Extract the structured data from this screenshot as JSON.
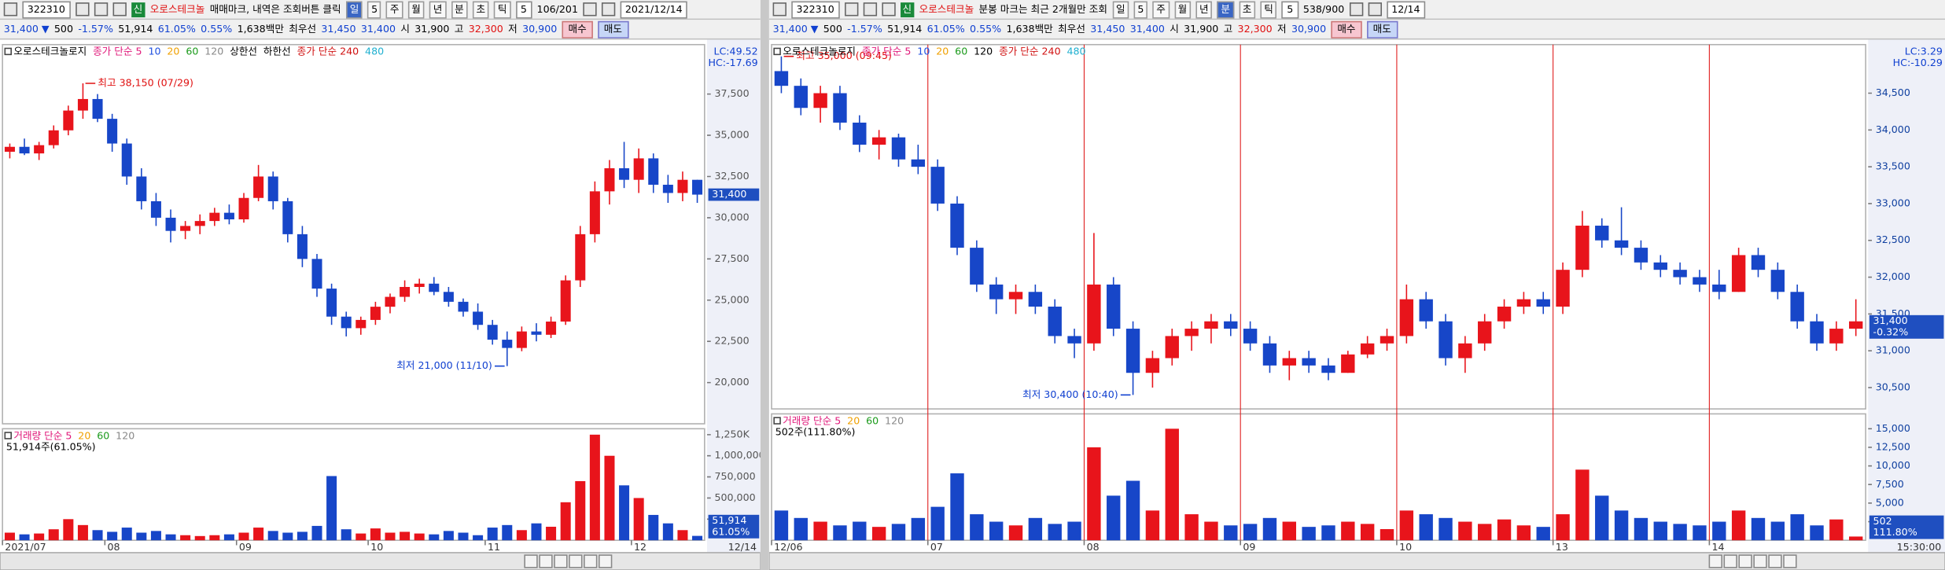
{
  "panels": [
    {
      "toolbar": {
        "code": "322310",
        "badge": "신",
        "name": "오로스테크놀",
        "notice": "매매마크, 내역은 조회버튼 클릭",
        "periods": [
          "일",
          "5",
          "주",
          "월",
          "년",
          "분",
          "초",
          "틱"
        ],
        "interval": "5",
        "count": "106/201",
        "date": "2021/12/14"
      },
      "quote": {
        "price": "31,400 ▼",
        "change": "500",
        "rate": "-1.57%",
        "volume": "51,914",
        "volume_rate": "61.05%",
        "turnover": "0.55%",
        "amount": "1,638백만",
        "best_label": "최우선",
        "ask": "31,450",
        "bid": "31,400",
        "open_label": "시",
        "open": "31,900",
        "high_label": "고",
        "high": "32,300",
        "low_label": "저",
        "low": "30,900",
        "buy": "매수",
        "sell": "매도"
      }
    },
    {
      "toolbar": {
        "code": "322310",
        "badge": "신",
        "name": "오로스테크놀",
        "notice": "분봉 마크는 최근 2개월만 조회",
        "periods": [
          "일",
          "5",
          "주",
          "월",
          "년",
          "분",
          "초",
          "틱"
        ],
        "interval": "5",
        "count": "538/900",
        "date": "12/14"
      },
      "quote": {
        "price": "31,400 ▼",
        "change": "500",
        "rate": "-1.57%",
        "volume": "51,914",
        "volume_rate": "61.05%",
        "turnover": "0.55%",
        "amount": "1,638백만",
        "best_label": "최우선",
        "ask": "31,450",
        "bid": "31,400",
        "open_label": "시",
        "open": "31,900",
        "high_label": "고",
        "high": "32,300",
        "low_label": "저",
        "low": "30,900",
        "buy": "매수",
        "sell": "매도"
      }
    }
  ],
  "chart_data": [
    {
      "type": "candlestick",
      "legend": [
        {
          "name": "오로스테크놀로지",
          "color": "#000000"
        },
        {
          "name": "종가 단순 5",
          "color": "#e0187a"
        },
        {
          "name": "10",
          "color": "#1e4fe0"
        },
        {
          "name": "20",
          "color": "#f0a000"
        },
        {
          "name": "60",
          "color": "#1a9a1a"
        },
        {
          "name": "120",
          "color": "#888888"
        },
        {
          "name": "상한선",
          "color": "#000000"
        },
        {
          "name": "하한선",
          "color": "#000000"
        },
        {
          "name": "종가 단순 240",
          "color": "#d01010"
        },
        {
          "name": "480",
          "color": "#20b0d0"
        }
      ],
      "lc": "LC:49.52",
      "hc": "HC:-17.69",
      "high_note": "최고 38,150 (07/29)",
      "low_note": "최저 21,000 (11/10)",
      "price_label": "31,400",
      "up_color": "#e8141b",
      "down_color": "#1746c8",
      "open": [
        34000,
        34300,
        33900,
        34400,
        35300,
        36500,
        37200,
        36000,
        34500,
        32500,
        31000,
        30000,
        29200,
        29500,
        29800,
        30300,
        29900,
        31200,
        32500,
        31000,
        29000,
        27500,
        25700,
        24000,
        23300,
        23800,
        24600,
        25200,
        25800,
        26000,
        25500,
        24900,
        24300,
        23500,
        22600,
        22100,
        23100,
        22900,
        23700,
        26200,
        29000,
        31600,
        33000,
        32300,
        33600,
        32000,
        31500,
        32300
      ],
      "high": [
        34500,
        34800,
        34600,
        35600,
        36800,
        38150,
        37500,
        36300,
        34800,
        33000,
        31500,
        30500,
        29800,
        30200,
        30600,
        30800,
        31500,
        33200,
        32800,
        31200,
        29500,
        27800,
        26000,
        24300,
        24000,
        24900,
        25400,
        26200,
        26300,
        26400,
        25800,
        25100,
        24800,
        23800,
        23100,
        23400,
        23600,
        24000,
        26500,
        29500,
        32200,
        33500,
        34600,
        34200,
        33900,
        32600,
        32800,
        32300
      ],
      "low": [
        33600,
        33800,
        33500,
        34200,
        35000,
        36000,
        35800,
        34000,
        32000,
        30500,
        29500,
        28500,
        28700,
        29000,
        29500,
        29600,
        29700,
        31000,
        30500,
        28500,
        27000,
        25200,
        23500,
        22800,
        22900,
        23500,
        24200,
        24900,
        25400,
        25300,
        24600,
        24000,
        23200,
        22300,
        21000,
        21900,
        22500,
        22700,
        23500,
        25800,
        28500,
        30800,
        31800,
        31500,
        31500,
        30900,
        31000,
        30900
      ],
      "close": [
        34300,
        33900,
        34400,
        35300,
        36500,
        37200,
        36000,
        34500,
        32500,
        31000,
        30000,
        29200,
        29500,
        29800,
        30300,
        29900,
        31200,
        32500,
        31000,
        29000,
        27500,
        25700,
        24000,
        23300,
        23800,
        24600,
        25200,
        25800,
        26000,
        25500,
        24900,
        24300,
        23500,
        22600,
        22100,
        23100,
        22900,
        23700,
        26200,
        29000,
        31600,
        33000,
        32300,
        33600,
        32000,
        31500,
        32300,
        31400
      ],
      "ylim": [
        17500,
        40500
      ],
      "yticks": [
        {
          "value": 20000,
          "label": "20,000"
        },
        {
          "value": 22500,
          "label": "22,500"
        },
        {
          "value": 25000,
          "label": "25,000"
        },
        {
          "value": 27500,
          "label": "27,500"
        },
        {
          "value": 30000,
          "label": "30,000"
        },
        {
          "value": 32500,
          "label": "32,500"
        },
        {
          "value": 35000,
          "label": "35,000"
        },
        {
          "value": 37500,
          "label": "37,500"
        }
      ]
    },
    {
      "type": "volume",
      "legend": [
        {
          "name": "거래량 단순 5",
          "color": "#e0187a"
        },
        {
          "name": "20",
          "color": "#f0a000"
        },
        {
          "name": "60",
          "color": "#1a9a1a"
        },
        {
          "name": "120",
          "color": "#888888"
        }
      ],
      "caption": "51,914주(61.05%)",
      "current_label": "51,914",
      "current_rate": "61.05%",
      "values": [
        90000,
        70000,
        80000,
        130000,
        250000,
        180000,
        120000,
        100000,
        150000,
        90000,
        110000,
        70000,
        60000,
        50000,
        60000,
        70000,
        90000,
        150000,
        110000,
        90000,
        100000,
        170000,
        760000,
        130000,
        80000,
        140000,
        90000,
        100000,
        80000,
        70000,
        110000,
        90000,
        60000,
        150000,
        180000,
        120000,
        200000,
        160000,
        450000,
        700000,
        1250000,
        1000000,
        650000,
        500000,
        300000,
        200000,
        120000,
        51914
      ],
      "ylim": [
        0,
        1320000
      ],
      "yticks": [
        {
          "value": 250000,
          "label": "250,000"
        },
        {
          "value": 500000,
          "label": "500,000"
        },
        {
          "value": 750000,
          "label": "750,000"
        },
        {
          "value": 1000000,
          "label": "1,000,000"
        },
        {
          "value": 1250000,
          "label": "1,250K"
        }
      ],
      "xticks": [
        {
          "value": 0,
          "label": "2021/07"
        },
        {
          "value": 7,
          "label": "08"
        },
        {
          "value": 16,
          "label": "09"
        },
        {
          "value": 25,
          "label": "10"
        },
        {
          "value": 33,
          "label": "11"
        },
        {
          "value": 43,
          "label": "12"
        }
      ],
      "end_label": "12/14"
    },
    {
      "type": "candlestick",
      "legend": [
        {
          "name": "오로스테크놀로지",
          "color": "#000000"
        },
        {
          "name": "종가 단순 5",
          "color": "#e0187a"
        },
        {
          "name": "10",
          "color": "#1e4fe0"
        },
        {
          "name": "20",
          "color": "#f0a000"
        },
        {
          "name": "60",
          "color": "#1a9a1a"
        },
        {
          "name": "120",
          "color": "#000000"
        },
        {
          "name": "종가 단순 240",
          "color": "#d01010"
        },
        {
          "name": "480",
          "color": "#20b0d0"
        }
      ],
      "lc": "LC:3.29",
      "hc": "HC:-10.29",
      "high_note": "최고 35,000 (09:45)",
      "low_note": "최저 30,400 (10:40)",
      "price_label": "31,400",
      "price_rate": "-0.32%",
      "up_color": "#e8141b",
      "down_color": "#1746c8",
      "day_separators": true,
      "open": [
        34800,
        34600,
        34300,
        34500,
        34100,
        33800,
        33900,
        33600,
        33500,
        33000,
        32400,
        31900,
        31700,
        31800,
        31600,
        31200,
        31100,
        31900,
        31300,
        30700,
        30900,
        31200,
        31300,
        31400,
        31300,
        31100,
        30800,
        30900,
        30800,
        30700,
        30950,
        31100,
        31200,
        31700,
        31400,
        30900,
        31100,
        31400,
        31600,
        31700,
        31600,
        32100,
        32700,
        32500,
        32400,
        32200,
        32100,
        32000,
        31900,
        31800,
        32300,
        32100,
        31800,
        31400,
        31100,
        31300
      ],
      "high": [
        35000,
        34700,
        34600,
        34600,
        34200,
        34000,
        33950,
        33800,
        33600,
        33100,
        32500,
        32000,
        31900,
        31900,
        31700,
        31300,
        32600,
        32000,
        31400,
        31000,
        31300,
        31400,
        31500,
        31500,
        31400,
        31200,
        31000,
        31000,
        30900,
        31000,
        31200,
        31300,
        31900,
        31800,
        31500,
        31200,
        31500,
        31700,
        31800,
        31800,
        32200,
        32900,
        32800,
        32950,
        32500,
        32300,
        32200,
        32100,
        32100,
        32400,
        32400,
        32200,
        31900,
        31500,
        31400,
        31700
      ],
      "low": [
        34500,
        34200,
        34100,
        34000,
        33700,
        33600,
        33500,
        33400,
        32900,
        32300,
        31800,
        31500,
        31500,
        31500,
        31100,
        30900,
        31000,
        31200,
        30400,
        30500,
        30800,
        31000,
        31100,
        31200,
        31000,
        30700,
        30600,
        30700,
        30600,
        30700,
        30900,
        31000,
        31100,
        31300,
        30800,
        30700,
        31000,
        31300,
        31500,
        31500,
        31500,
        32000,
        32400,
        32300,
        32100,
        32000,
        31900,
        31800,
        31700,
        31800,
        32000,
        31700,
        31300,
        31000,
        31000,
        31200
      ],
      "close": [
        34600,
        34300,
        34500,
        34100,
        33800,
        33900,
        33600,
        33500,
        33000,
        32400,
        31900,
        31700,
        31800,
        31600,
        31200,
        31100,
        31900,
        31300,
        30700,
        30900,
        31200,
        31300,
        31400,
        31300,
        31100,
        30800,
        30900,
        30800,
        30700,
        30950,
        31100,
        31200,
        31700,
        31400,
        30900,
        31100,
        31400,
        31600,
        31700,
        31600,
        32100,
        32700,
        32500,
        32400,
        32200,
        32100,
        32000,
        31900,
        31800,
        32300,
        32100,
        31800,
        31400,
        31100,
        31300,
        31400
      ],
      "ylim": [
        30210,
        35160
      ],
      "yticks": [
        {
          "value": 30500,
          "label": "30,500"
        },
        {
          "value": 31000,
          "label": "31,000"
        },
        {
          "value": 31500,
          "label": "31,500"
        },
        {
          "value": 32000,
          "label": "32,000"
        },
        {
          "value": 32500,
          "label": "32,500"
        },
        {
          "value": 33000,
          "label": "33,000"
        },
        {
          "value": 33500,
          "label": "33,500"
        },
        {
          "value": 34000,
          "label": "34,000"
        },
        {
          "value": 34500,
          "label": "34,500"
        }
      ]
    },
    {
      "type": "volume",
      "legend": [
        {
          "name": "거래량 단순 5",
          "color": "#e0187a"
        },
        {
          "name": "20",
          "color": "#f0a000"
        },
        {
          "name": "60",
          "color": "#1a9a1a"
        },
        {
          "name": "120",
          "color": "#888888"
        }
      ],
      "caption": "502주(111.80%)",
      "current_label": "502",
      "current_rate": "111.80%",
      "values": [
        4000,
        3000,
        2500,
        2000,
        2500,
        1800,
        2200,
        3000,
        4500,
        9000,
        3500,
        2500,
        2000,
        3000,
        2200,
        2500,
        12500,
        6000,
        8000,
        4000,
        15000,
        3500,
        2500,
        2000,
        2200,
        3000,
        2500,
        1800,
        2000,
        2500,
        2200,
        1500,
        4000,
        3500,
        3000,
        2500,
        2200,
        2800,
        2000,
        1800,
        3500,
        9500,
        6000,
        4000,
        3000,
        2500,
        2200,
        2000,
        2500,
        4000,
        3000,
        2500,
        3500,
        2000,
        2800,
        502
      ],
      "ylim": [
        0,
        17000
      ],
      "yticks": [
        {
          "value": 2500,
          "label": "2,500"
        },
        {
          "value": 5000,
          "label": "5,000"
        },
        {
          "value": 7500,
          "label": "7,500"
        },
        {
          "value": 10000,
          "label": "10,000"
        },
        {
          "value": 12500,
          "label": "12,500"
        },
        {
          "value": 15000,
          "label": "15,000"
        }
      ],
      "xticks": [
        {
          "value": 0,
          "label": "12/06"
        },
        {
          "value": 8,
          "label": "07"
        },
        {
          "value": 16,
          "label": "08"
        },
        {
          "value": 24,
          "label": "09"
        },
        {
          "value": 32,
          "label": "10"
        },
        {
          "value": 40,
          "label": "13"
        },
        {
          "value": 48,
          "label": "14"
        }
      ],
      "end_label": "15:30:00"
    }
  ]
}
